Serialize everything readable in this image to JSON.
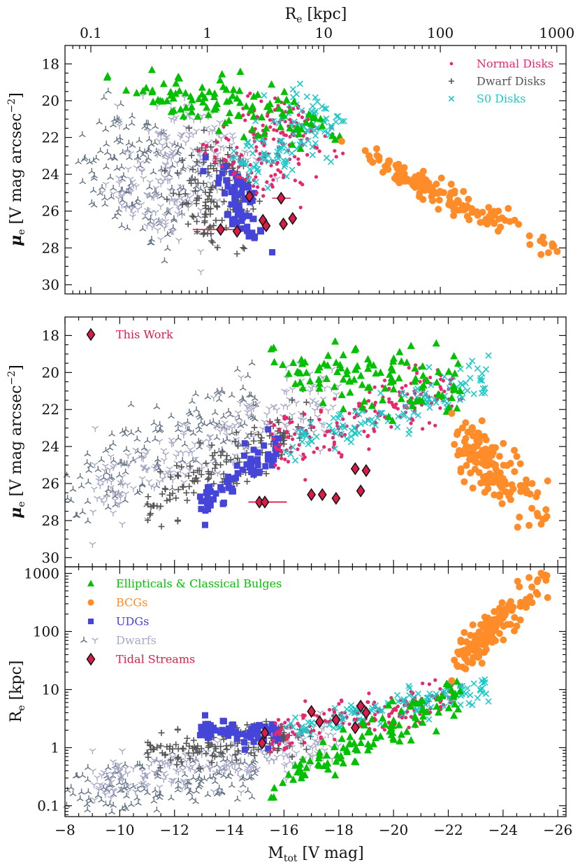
{
  "figure": {
    "top_axis_label": "R",
    "top_axis_label_sub": "e",
    "top_axis_label_unit": " [kpc]",
    "bottom_axis_label": "M",
    "bottom_axis_label_sub": "tot",
    "bottom_axis_label_unit": " [V mag]",
    "mu_label_main": "μ",
    "mu_label_sub": "e",
    "mu_label_unit": " [V mag arcsec",
    "mu_label_sup": "−2",
    "mu_label_close": "]",
    "re_label_main": "R",
    "re_label_sub": "e",
    "re_label_unit": " [kpc]"
  },
  "colors": {
    "ellipticals": "#00c000",
    "bcgs": "#ff8c28",
    "udgs": "#4545d8",
    "dwarfs_dark": "#607080",
    "dwarfs_light": "#a8a8c8",
    "tidal": "#d81e48",
    "normal_disks": "#e8286e",
    "dwarf_disks": "#555555",
    "s0_disks": "#1ec8c8"
  },
  "legend_top": [
    {
      "label": "Normal Disks",
      "color": "#e8286e",
      "marker": "dot"
    },
    {
      "label": "Dwarf Disks",
      "color": "#555555",
      "marker": "plus"
    },
    {
      "label": "S0 Disks",
      "color": "#1ec8c8",
      "marker": "x"
    }
  ],
  "legend_middle": [
    {
      "label": "This Work",
      "color": "#d81e48",
      "marker": "diamond"
    }
  ],
  "legend_bottom": [
    {
      "label": "Ellipticals & Classical Bulges",
      "color": "#00c000",
      "marker": "triangle"
    },
    {
      "label": "BCGs",
      "color": "#ff8c28",
      "marker": "circle"
    },
    {
      "label": "UDGs",
      "color": "#4545d8",
      "marker": "square"
    },
    {
      "label": "Dwarfs",
      "color": "#a8a8c8",
      "marker": "tri"
    },
    {
      "label": "Tidal Streams",
      "color": "#d81e48",
      "marker": "diamond"
    }
  ],
  "chart_data": [
    {
      "type": "scatter",
      "panel": "top",
      "x_axis": "R_e [kpc]",
      "x_scale": "log",
      "xlim": [
        0.06,
        1200
      ],
      "x_ticks": [
        "0.1",
        "1",
        "10",
        "100",
        "1000"
      ],
      "y_axis": "mu_e [V mag arcsec^-2]",
      "ylim": [
        30.5,
        17
      ],
      "y_inverted": true,
      "y_ticks": [
        "18",
        "20",
        "22",
        "24",
        "26",
        "28",
        "30"
      ],
      "series": [
        {
          "name": "This Work",
          "points": [
            [
              1.3,
              27.0
            ],
            [
              2.3,
              25.2
            ],
            [
              1.8,
              27.1
            ],
            [
              3.0,
              26.5
            ],
            [
              3.2,
              26.8
            ],
            [
              4.3,
              25.3
            ],
            [
              4.5,
              26.7
            ],
            [
              5.4,
              26.4
            ]
          ]
        }
      ]
    },
    {
      "type": "scatter",
      "panel": "middle",
      "x_axis": "M_tot [V mag]",
      "xlim": [
        -8,
        -26.3
      ],
      "x_inverted": true,
      "y_axis": "mu_e [V mag arcsec^-2]",
      "ylim": [
        30.5,
        17
      ],
      "y_inverted": true,
      "y_ticks": [
        "18",
        "20",
        "22",
        "24",
        "26",
        "28",
        "30"
      ],
      "series": [
        {
          "name": "This Work",
          "points": [
            [
              -15.1,
              27.0
            ],
            [
              -15.3,
              27.0
            ],
            [
              -17.0,
              26.6
            ],
            [
              -17.4,
              26.6
            ],
            [
              -17.9,
              26.8
            ],
            [
              -18.6,
              25.2
            ],
            [
              -19.0,
              25.3
            ],
            [
              -18.8,
              26.4
            ]
          ]
        }
      ]
    },
    {
      "type": "scatter",
      "panel": "bottom",
      "x_axis": "M_tot [V mag]",
      "xlim": [
        -8,
        -26.3
      ],
      "x_inverted": true,
      "x_ticks": [
        "−8",
        "−10",
        "−12",
        "−14",
        "−16",
        "−18",
        "−20",
        "−22",
        "−24",
        "−26"
      ],
      "y_axis": "R_e [kpc]",
      "y_scale": "log",
      "ylim": [
        0.065,
        1300
      ],
      "y_ticks": [
        "0.1",
        "1",
        "10",
        "100",
        "1000"
      ],
      "series": [
        {
          "name": "Tidal Streams",
          "points": [
            [
              -15.2,
              1.2
            ],
            [
              -15.3,
              1.8
            ],
            [
              -17.0,
              4.2
            ],
            [
              -17.3,
              2.8
            ],
            [
              -17.9,
              3.0
            ],
            [
              -18.6,
              2.2
            ],
            [
              -18.8,
              5.2
            ],
            [
              -19.0,
              4.0
            ]
          ]
        }
      ]
    }
  ]
}
